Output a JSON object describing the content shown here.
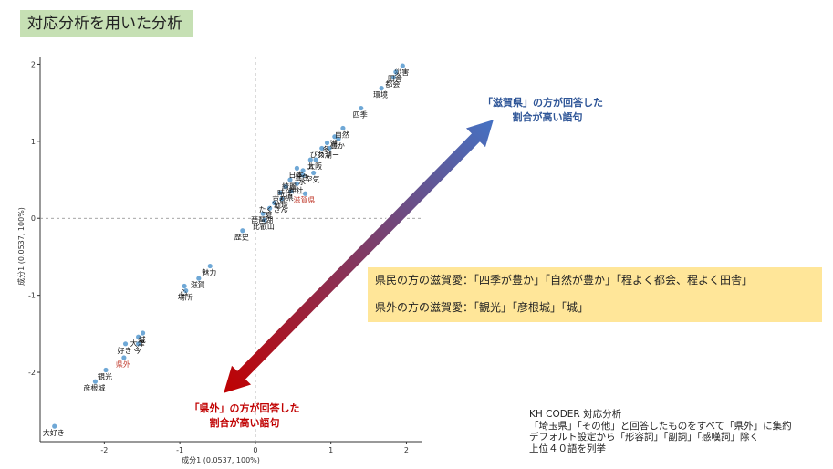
{
  "page": {
    "title": "対応分析を用いた分析"
  },
  "callout": {
    "line1": "県民の方の滋賀愛：「四季が豊か」「自然が豊か」「程よく都会、程よく田舎」",
    "line2": "県外の方の滋賀愛：「観光」「彦根城」「城」"
  },
  "note": {
    "line1": "KH CODER 対応分析",
    "line2": "「埼玉県」「その他」と回答したものをすべて「県外」に集約",
    "line3": "デフォルト設定から「形容詞」「副詞」「感嘆詞」除く",
    "line4": "上位４０語を列挙"
  },
  "annotations": {
    "upper_line1": "「滋賀県」の方が回答した",
    "upper_line2": "割合が高い語句",
    "upper_color": "#2e5597",
    "lower_line1": "「県外」の方が回答した",
    "lower_line2": "割合が高い語句",
    "lower_color": "#c00000"
  },
  "colors": {
    "point": "#6fa8d6",
    "highlight_label": "#c0392b",
    "arrow_top": "#4472c4",
    "arrow_bottom": "#c00000",
    "title_bg": "#c6e0b4",
    "callout_bg": "#ffe699"
  },
  "chart_data": {
    "type": "scatter",
    "xlabel": "成分1 (0.0537, 100%)",
    "ylabel": "成分1 (0.0537, 100%)",
    "xlim": [
      -2.85,
      2.2
    ],
    "ylim": [
      -2.9,
      2.1
    ],
    "xticks": [
      -2,
      -1,
      0,
      1,
      2
    ],
    "yticks": [
      -2,
      -1,
      0,
      1,
      2
    ],
    "reference_lines": {
      "x": 0,
      "y": 0
    },
    "points": [
      {
        "label": "災害",
        "x": 1.95,
        "y": 1.98
      },
      {
        "label": "田舎",
        "x": 1.86,
        "y": 1.9
      },
      {
        "label": "都会",
        "x": 1.83,
        "y": 1.83
      },
      {
        "label": "環境",
        "x": 1.67,
        "y": 1.69
      },
      {
        "label": "四季",
        "x": 1.4,
        "y": 1.43
      },
      {
        "label": "自然",
        "x": 1.16,
        "y": 1.17
      },
      {
        "label": "湖",
        "x": 1.05,
        "y": 1.06
      },
      {
        "label": "豊か",
        "x": 1.1,
        "y": 1.03
      },
      {
        "label": "冬",
        "x": 0.95,
        "y": 0.98
      },
      {
        "label": "びわ湖",
        "x": 0.88,
        "y": 0.91
      },
      {
        "label": "スキー",
        "x": 0.98,
        "y": 0.91
      },
      {
        "label": "山",
        "x": 0.73,
        "y": 0.76
      },
      {
        "label": "大阪",
        "x": 0.8,
        "y": 0.76
      },
      {
        "label": "日本",
        "x": 0.55,
        "y": 0.65
      },
      {
        "label": "景色",
        "x": 0.63,
        "y": 0.62
      },
      {
        "label": "水",
        "x": 0.63,
        "y": 0.56
      },
      {
        "label": "空気",
        "x": 0.77,
        "y": 0.59
      },
      {
        "label": "綺麗",
        "x": 0.46,
        "y": 0.5
      },
      {
        "label": "神社",
        "x": 0.55,
        "y": 0.45
      },
      {
        "label": "時代",
        "x": 0.4,
        "y": 0.41
      },
      {
        "label": "県",
        "x": 0.47,
        "y": 0.35
      },
      {
        "label": "京都",
        "x": 0.33,
        "y": 0.33
      },
      {
        "label": "滋賀県",
        "x": 0.66,
        "y": 0.32,
        "highlight": true
      },
      {
        "label": "地域",
        "x": 0.35,
        "y": 0.25
      },
      {
        "label": "たくさん",
        "x": 0.25,
        "y": 0.2
      },
      {
        "label": "夏",
        "x": 0.19,
        "y": 0.13
      },
      {
        "label": "琵琶湖",
        "x": 0.1,
        "y": 0.06
      },
      {
        "label": "比叡山",
        "x": 0.12,
        "y": -0.02
      },
      {
        "label": "歴史",
        "x": -0.17,
        "y": -0.16
      },
      {
        "label": "魅力",
        "x": -0.6,
        "y": -0.62
      },
      {
        "label": "滋賀",
        "x": -0.75,
        "y": -0.78
      },
      {
        "label": "心",
        "x": -0.94,
        "y": -0.88
      },
      {
        "label": "場所",
        "x": -0.92,
        "y": -0.94
      },
      {
        "label": "城",
        "x": -1.49,
        "y": -1.49
      },
      {
        "label": "大津",
        "x": -1.55,
        "y": -1.54
      },
      {
        "label": "好き",
        "x": -1.72,
        "y": -1.63
      },
      {
        "label": "今",
        "x": -1.55,
        "y": -1.63
      },
      {
        "label": "県外",
        "x": -1.74,
        "y": -1.81,
        "highlight": true
      },
      {
        "label": "観光",
        "x": -1.98,
        "y": -1.97
      },
      {
        "label": "彦根城",
        "x": -2.12,
        "y": -2.12
      },
      {
        "label": "大好き",
        "x": -2.66,
        "y": -2.7
      }
    ]
  }
}
